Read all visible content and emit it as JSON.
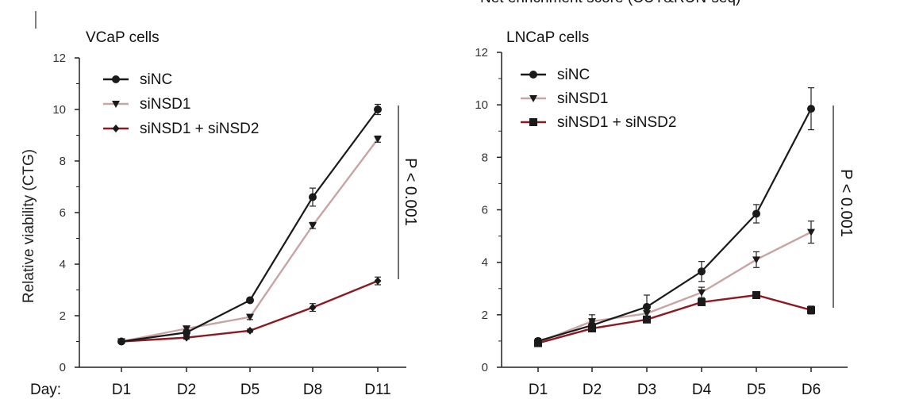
{
  "header_clipped_text": "Net enrichment score (CUT&RUN-seq)",
  "day_label": "Day:",
  "ylabel": "Relative viability (CTG)",
  "colors": {
    "siNC": "#1a1a1a",
    "siNSD1": "#c8a4a4",
    "siNSD1_siNSD2": "#8b1a22",
    "axis": "#222222"
  },
  "chart_data": [
    {
      "type": "line",
      "title": "VCaP cells",
      "categories": [
        "D1",
        "D2",
        "D5",
        "D8",
        "D11"
      ],
      "ylim": [
        0,
        12
      ],
      "yticks": [
        "0",
        "2",
        "4",
        "6",
        "8",
        "10",
        "12"
      ],
      "ylabel": "Relative viability (CTG)",
      "pvalue": "P < 0.001",
      "series": [
        {
          "name": "siNC",
          "marker": "circle",
          "values": [
            1.0,
            1.35,
            2.6,
            6.6,
            10.0
          ],
          "errors": [
            0.08,
            0.1,
            0.08,
            0.35,
            0.2
          ]
        },
        {
          "name": "siNSD1",
          "marker": "triangle",
          "values": [
            1.0,
            1.5,
            1.95,
            5.5,
            8.85
          ],
          "errors": [
            0.08,
            0.1,
            0.1,
            0.12,
            0.12
          ]
        },
        {
          "name": "siNSD1 + siNSD2",
          "marker": "diamond",
          "values": [
            1.0,
            1.15,
            1.42,
            2.32,
            3.35
          ],
          "errors": [
            0.08,
            0.06,
            0.06,
            0.15,
            0.15
          ]
        }
      ]
    },
    {
      "type": "line",
      "title": "LNCaP cells",
      "categories": [
        "D1",
        "D2",
        "D3",
        "D4",
        "D5",
        "D6"
      ],
      "ylim": [
        0,
        12
      ],
      "yticks": [
        "0",
        "2",
        "4",
        "6",
        "8",
        "10",
        "12"
      ],
      "pvalue": "P < 0.001",
      "series": [
        {
          "name": "siNC",
          "marker": "circle",
          "values": [
            1.0,
            1.6,
            2.3,
            3.65,
            5.85,
            9.85
          ],
          "errors": [
            0.1,
            0.15,
            0.45,
            0.38,
            0.35,
            0.8
          ]
        },
        {
          "name": "siNSD1",
          "marker": "triangle",
          "values": [
            0.95,
            1.75,
            2.05,
            2.85,
            4.1,
            5.15
          ],
          "errors": [
            0.1,
            0.25,
            0.2,
            0.2,
            0.3,
            0.42
          ]
        },
        {
          "name": "siNSD1 + siNSD2",
          "marker": "square",
          "values": [
            0.92,
            1.48,
            1.82,
            2.48,
            2.75,
            2.18
          ],
          "errors": [
            0.06,
            0.1,
            0.08,
            0.1,
            0.12,
            0.15
          ]
        }
      ]
    }
  ]
}
